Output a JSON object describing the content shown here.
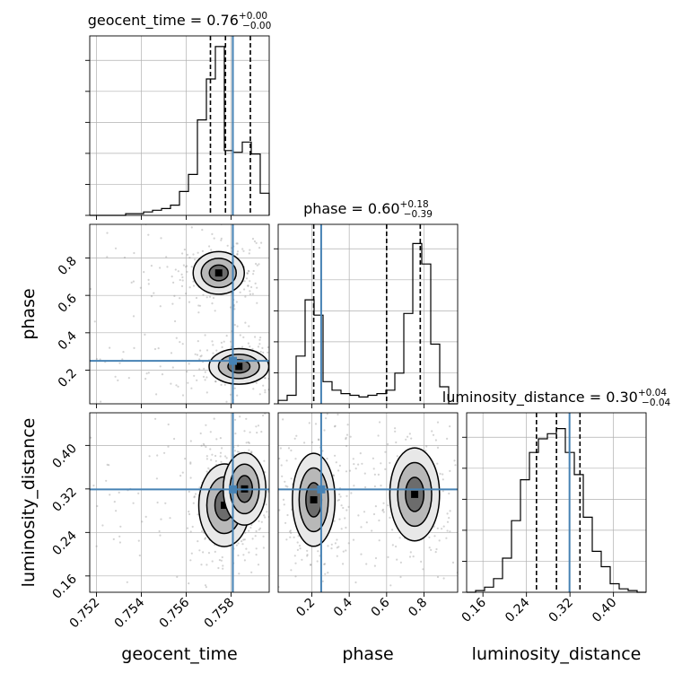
{
  "colors": {
    "truth": "#4682b4",
    "hist": "#000000",
    "grid": "#b0b0b0",
    "points": "#808080"
  },
  "chart_data": [
    {
      "type": "histogram",
      "panel": "geocent_time",
      "title": {
        "param": "geocent_time",
        "median": "0.76",
        "plus": "+0.00",
        "minus": "−0.00"
      },
      "xlim": [
        0.7517,
        0.7597
      ],
      "bin_edges": [
        0.7517,
        0.7521,
        0.7525,
        0.7529,
        0.7533,
        0.7537,
        0.7541,
        0.7545,
        0.7549,
        0.7553,
        0.7557,
        0.7561,
        0.7565,
        0.7569,
        0.7573,
        0.7577,
        0.7581,
        0.7585,
        0.7589,
        0.7593,
        0.7597
      ],
      "counts": [
        0,
        0,
        0,
        0,
        0.01,
        0.01,
        0.02,
        0.03,
        0.04,
        0.06,
        0.14,
        0.24,
        0.56,
        0.8,
        0.99,
        0.38,
        0.37,
        0.43,
        0.36,
        0.13
      ],
      "quantiles": [
        0.75708,
        0.75775,
        0.75886
      ],
      "truth": 0.75808
    },
    {
      "type": "histogram",
      "panel": "phase",
      "title": {
        "param": "phase",
        "median": "0.60",
        "plus": "+0.18",
        "minus": "−0.39"
      },
      "xlim": [
        0.02,
        0.98
      ],
      "bin_edges": [
        0.02,
        0.068,
        0.116,
        0.164,
        0.212,
        0.26,
        0.308,
        0.356,
        0.404,
        0.452,
        0.5,
        0.548,
        0.596,
        0.644,
        0.692,
        0.74,
        0.788,
        0.836,
        0.884,
        0.932,
        0.98
      ],
      "counts": [
        0.02,
        0.05,
        0.28,
        0.61,
        0.52,
        0.13,
        0.08,
        0.06,
        0.05,
        0.04,
        0.05,
        0.06,
        0.08,
        0.18,
        0.53,
        0.94,
        0.82,
        0.35,
        0.1,
        0
      ],
      "quantiles": [
        0.21,
        0.6,
        0.78
      ],
      "truth": 0.25
    },
    {
      "type": "histogram",
      "panel": "luminosity_distance",
      "title": {
        "param": "luminosity_distance",
        "median": "0.30",
        "plus": "+0.04",
        "minus": "−0.04"
      },
      "xlim": [
        0.13,
        0.46
      ],
      "bin_edges": [
        0.13,
        0.1465,
        0.163,
        0.1795,
        0.196,
        0.2125,
        0.229,
        0.2455,
        0.262,
        0.2785,
        0.295,
        0.3115,
        0.328,
        0.3445,
        0.361,
        0.3775,
        0.394,
        0.4105,
        0.427,
        0.4435,
        0.46
      ],
      "counts": [
        0,
        0.01,
        0.03,
        0.08,
        0.2,
        0.42,
        0.66,
        0.82,
        0.9,
        0.93,
        0.96,
        0.82,
        0.69,
        0.44,
        0.24,
        0.15,
        0.05,
        0.02,
        0.01,
        0
      ],
      "quantiles": [
        0.2584,
        0.2952,
        0.3384
      ],
      "truth": 0.3192
    },
    {
      "type": "scatter",
      "panel": "phase vs geocent_time",
      "x_param": "geocent_time",
      "y_param": "phase",
      "xlim": [
        0.7517,
        0.7597
      ],
      "ylim": [
        0.02,
        0.98
      ],
      "contour_modes": [
        {
          "x": 0.75745,
          "y": 0.72,
          "sx": 0.0006,
          "sy": 0.06
        },
        {
          "x": 0.75835,
          "y": 0.22,
          "sx": 0.0007,
          "sy": 0.05
        }
      ],
      "truth": {
        "x": 0.75808,
        "y": 0.25
      }
    },
    {
      "type": "scatter",
      "panel": "luminosity_distance vs geocent_time",
      "x_param": "geocent_time",
      "y_param": "luminosity_distance",
      "xlim": [
        0.7517,
        0.7597
      ],
      "ylim": [
        0.13,
        0.46
      ],
      "contour_modes": [
        {
          "x": 0.7577,
          "y": 0.29,
          "sx": 0.0006,
          "sy": 0.04
        },
        {
          "x": 0.7586,
          "y": 0.32,
          "sx": 0.0005,
          "sy": 0.035
        }
      ],
      "truth": {
        "x": 0.75808,
        "y": 0.3192
      }
    },
    {
      "type": "scatter",
      "panel": "luminosity_distance vs phase",
      "x_param": "phase",
      "y_param": "luminosity_distance",
      "xlim": [
        0.02,
        0.98
      ],
      "ylim": [
        0.13,
        0.46
      ],
      "contour_modes": [
        {
          "x": 0.21,
          "y": 0.3,
          "sx": 0.06,
          "sy": 0.045
        },
        {
          "x": 0.75,
          "y": 0.31,
          "sx": 0.07,
          "sy": 0.045
        }
      ],
      "truth": {
        "x": 0.25,
        "y": 0.3192
      }
    }
  ],
  "ticks": {
    "geocent_time": [
      "0.752",
      "0.754",
      "0.756",
      "0.758"
    ],
    "phase": [
      "0.2",
      "0.4",
      "0.6",
      "0.8"
    ],
    "luminosity_distance": [
      "0.16",
      "0.24",
      "0.32",
      "0.40"
    ]
  },
  "axis_labels": {
    "geocent_time": "geocent_time",
    "phase": "phase",
    "luminosity_distance": "luminosity_distance"
  }
}
